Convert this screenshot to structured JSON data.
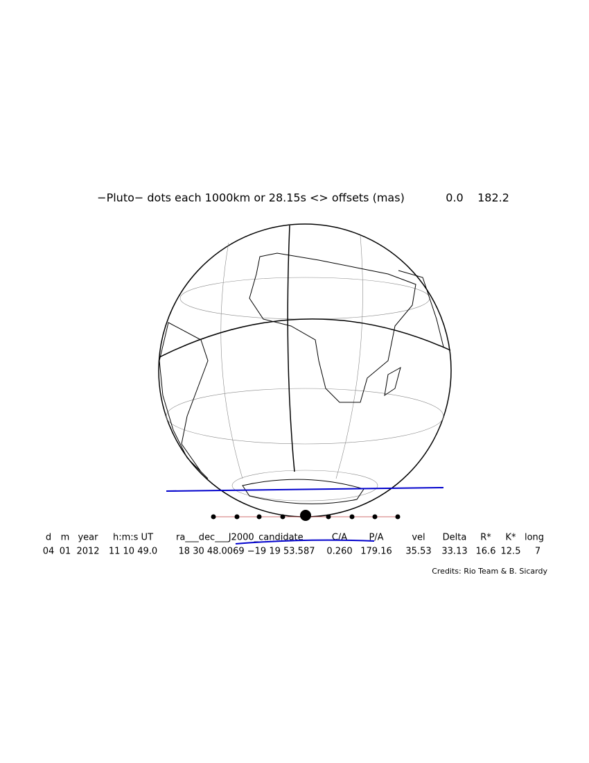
{
  "header": {
    "title": "−Pluto− dots each 1000km or 28.15s <> offsets (mas)",
    "offsets": [
      "0.0",
      "182.2"
    ]
  },
  "table": {
    "columns": [
      "d",
      "m",
      "year",
      "h:m:s UT",
      "ra___dec___J2000_candidate",
      "C/A",
      "P/A",
      "vel",
      "Delta",
      "R*",
      "K*",
      "long"
    ],
    "values": [
      "04",
      "01",
      "2012",
      "11 10 49.0",
      "18 30 48.0069 −19 19 53.587",
      "0.260",
      "179.16",
      "35.53",
      "33.13",
      "16.6",
      "12.5",
      "7"
    ]
  },
  "credits": "Credits: Rio Team & B. Sicardy"
}
